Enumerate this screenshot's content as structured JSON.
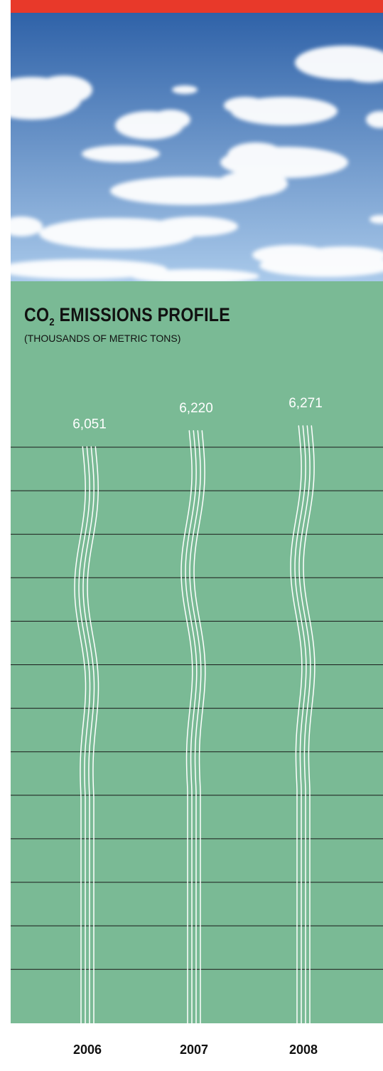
{
  "header": {
    "accent_color": "#e8392a"
  },
  "sky": {
    "sky_top": "#2f62a8",
    "sky_bottom": "#a9c9ea",
    "cloud": "#ffffff"
  },
  "panel": {
    "background": "#7aba95",
    "gridline_color": "#1a1a1a",
    "line_color": "#ffffff"
  },
  "title": {
    "prefix": "CO",
    "sub": "2",
    "rest": " EMISSIONS PROFILE"
  },
  "subtitle": "(THOUSANDS OF METRIC TONS)",
  "chart_data": {
    "type": "bar",
    "title": "CO2 EMISSIONS PROFILE",
    "subtitle": "(THOUSANDS OF METRIC TONS)",
    "categories": [
      "2006",
      "2007",
      "2008"
    ],
    "values": [
      6051,
      6220,
      6271
    ],
    "value_labels": [
      "6,051",
      "6,220",
      "6,271"
    ],
    "ylim": [
      0,
      6271
    ],
    "grid": true,
    "legend": "none"
  }
}
